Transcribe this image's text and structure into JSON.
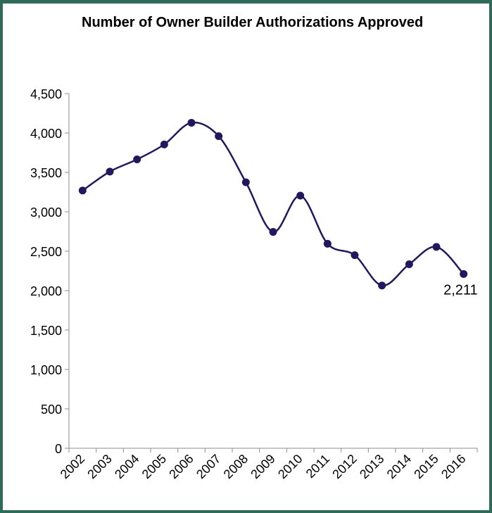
{
  "chart_data": {
    "type": "line",
    "title": "Number of Owner Builder Authorizations Approved",
    "xlabel": "",
    "ylabel": "",
    "categories": [
      "2002",
      "2003",
      "2004",
      "2005",
      "2006",
      "2007",
      "2008",
      "2009",
      "2010",
      "2011",
      "2012",
      "2013",
      "2014",
      "2015",
      "2016"
    ],
    "series": [
      {
        "values": [
          3270,
          3510,
          3665,
          3855,
          4130,
          3960,
          3375,
          2745,
          3205,
          2595,
          2450,
          2065,
          2335,
          2555,
          2211
        ]
      }
    ],
    "ylim": [
      0,
      4500
    ],
    "yticks": [
      0,
      500,
      1000,
      1500,
      2000,
      2500,
      3000,
      3500,
      4000,
      4500
    ],
    "ytick_labels": [
      "0",
      "500",
      "1,000",
      "1,500",
      "2,000",
      "2,500",
      "3,000",
      "3,500",
      "4,000",
      "4,500"
    ],
    "data_labels": [
      {
        "index": 14,
        "text": "2,211"
      }
    ],
    "line_color": "#23185e",
    "smooth": true,
    "grid": false,
    "legend": "none"
  }
}
